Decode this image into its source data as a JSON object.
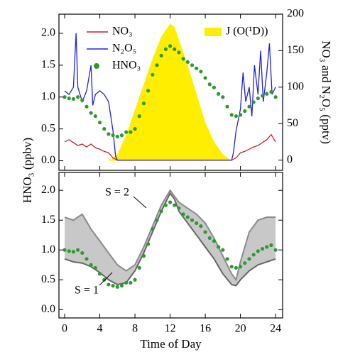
{
  "chart_data": [
    {
      "type": "line",
      "y_label": "HNO₃ (ppbv)",
      "y2_label": "NO₃ and N₂O₅ (pptv)",
      "xlim": [
        -0.65,
        24.8
      ],
      "xticks": [
        0,
        4,
        8,
        12,
        16,
        20,
        24
      ],
      "ylim": [
        -0.15,
        2.3
      ],
      "yticks": [
        {
          "value": 0,
          "label": "0.0"
        },
        0.5,
        {
          "value": 1,
          "label": "1.0"
        },
        1.5,
        {
          "value": 2,
          "label": "2.0"
        }
      ],
      "y2lim": [
        -14,
        200
      ],
      "y2ticks": [
        0,
        50,
        100,
        150,
        200
      ],
      "series": [
        {
          "name": "J (O(¹D))",
          "color": "#ffee00",
          "style": "area",
          "x": [
            5,
            6,
            7,
            8,
            9,
            10,
            11,
            12,
            12.5,
            13,
            14,
            15,
            16,
            17,
            18,
            19
          ],
          "values": [
            0,
            0.1,
            0.4,
            0.8,
            1.2,
            1.6,
            1.95,
            2.15,
            2.1,
            1.9,
            1.5,
            1.05,
            0.6,
            0.3,
            0.1,
            0
          ]
        },
        {
          "name": "NO₃",
          "color": "#cc2222",
          "style": "line",
          "axis": "y2",
          "x": [
            0,
            0.5,
            1,
            1.5,
            2,
            2.5,
            3,
            3.5,
            4,
            4.5,
            5,
            5.5,
            6,
            19,
            19.5,
            20,
            20.5,
            21,
            21.5,
            22,
            22.5,
            23,
            23.5,
            24
          ],
          "values": [
            25,
            28,
            24,
            20,
            22,
            18,
            22,
            17,
            15,
            12,
            10,
            3,
            0,
            0,
            3,
            10,
            12,
            15,
            18,
            20,
            24,
            28,
            35,
            25
          ]
        },
        {
          "name": "N₂O₅",
          "color": "#2222dd",
          "style": "line",
          "axis": "y2",
          "x": [
            0,
            0.5,
            1,
            1.3,
            1.5,
            2,
            2.5,
            3,
            3.2,
            3.5,
            4,
            4.5,
            5,
            5.5,
            5.8,
            6,
            19,
            19.2,
            19.5,
            20,
            20.3,
            20.6,
            21,
            21.3,
            21.6,
            22,
            22.3,
            22.6,
            23,
            23.3,
            23.6,
            24
          ],
          "values": [
            95,
            90,
            100,
            174,
            100,
            80,
            95,
            130,
            75,
            90,
            95,
            90,
            80,
            40,
            5,
            0,
            0,
            10,
            40,
            70,
            120,
            80,
            100,
            60,
            130,
            90,
            150,
            80,
            120,
            160,
            90,
            100
          ]
        },
        {
          "name": "HNO₃",
          "color": "#2e9a2e",
          "style": "markers",
          "x": [
            0,
            0.5,
            1,
            1.5,
            2,
            2.5,
            3,
            3.5,
            4,
            4.5,
            5,
            5.5,
            6,
            6.5,
            7,
            7.5,
            8,
            8.5,
            9,
            9.5,
            10,
            10.5,
            11,
            11.5,
            12,
            12.5,
            13,
            13.5,
            14,
            14.5,
            15,
            15.5,
            16,
            16.5,
            17,
            17.5,
            18,
            18.5,
            19,
            19.5,
            20,
            20.5,
            21,
            21.5,
            22,
            22.5,
            23,
            23.5,
            24
          ],
          "values": [
            1.0,
            0.98,
            0.97,
            1.0,
            0.95,
            0.85,
            0.75,
            0.7,
            0.6,
            0.5,
            0.42,
            0.4,
            0.38,
            0.4,
            0.45,
            0.45,
            0.5,
            0.7,
            0.9,
            1.1,
            1.35,
            1.5,
            1.65,
            1.75,
            1.8,
            1.75,
            1.7,
            1.6,
            1.55,
            1.5,
            1.45,
            1.4,
            1.3,
            1.2,
            1.15,
            1.05,
            1.0,
            0.85,
            0.72,
            0.7,
            0.72,
            0.78,
            0.85,
            0.92,
            0.98,
            1.02,
            1.05,
            1.08,
            1.0
          ]
        }
      ]
    },
    {
      "type": "line",
      "x_label": "Time of Day",
      "xlim": [
        -0.65,
        24.8
      ],
      "xticks": [
        0,
        4,
        8,
        12,
        16,
        20,
        24
      ],
      "ylim": [
        -0.14,
        2.3
      ],
      "yticks": [
        {
          "value": 0,
          "label": "0.0"
        },
        0.5,
        {
          "value": 1,
          "label": "1.0"
        },
        1.5,
        {
          "value": 2,
          "label": "2.0"
        }
      ],
      "band_fill": "#c8c8c8",
      "series": [
        {
          "name": "S = 2",
          "color": "#8a8a8a",
          "style": "line",
          "x": [
            0,
            1,
            2,
            3,
            4,
            5,
            6,
            7,
            8,
            9,
            10,
            11,
            12,
            12.5,
            13,
            14,
            15,
            16,
            17,
            18,
            19,
            19.5,
            20,
            21,
            22,
            23,
            24
          ],
          "values": [
            1.55,
            1.5,
            1.6,
            1.35,
            1.15,
            0.95,
            0.75,
            0.65,
            0.75,
            1.05,
            1.4,
            1.75,
            2.0,
            1.9,
            1.8,
            1.7,
            1.6,
            1.45,
            1.2,
            0.9,
            0.6,
            0.5,
            0.8,
            1.3,
            1.5,
            1.55,
            1.55
          ]
        },
        {
          "name": "S = 1",
          "color": "#666666",
          "style": "line",
          "x": [
            0,
            1,
            2,
            3,
            4,
            5,
            6,
            7,
            8,
            9,
            10,
            11,
            12,
            12.5,
            13,
            14,
            15,
            16,
            17,
            18,
            19,
            19.5,
            20,
            21,
            22,
            23,
            24
          ],
          "values": [
            0.85,
            0.8,
            0.78,
            0.72,
            0.62,
            0.5,
            0.42,
            0.45,
            0.65,
            0.95,
            1.3,
            1.65,
            1.95,
            1.85,
            1.65,
            1.45,
            1.25,
            1.05,
            0.85,
            0.6,
            0.42,
            0.4,
            0.5,
            0.65,
            0.75,
            0.8,
            0.85
          ]
        },
        {
          "color": "#2e9a2e",
          "style": "markers",
          "x": [
            0,
            0.5,
            1,
            1.5,
            2,
            2.5,
            3,
            3.5,
            4,
            4.5,
            5,
            5.5,
            6,
            6.5,
            7,
            7.5,
            8,
            8.5,
            9,
            9.5,
            10,
            10.5,
            11,
            11.5,
            12,
            12.5,
            13,
            13.5,
            14,
            14.5,
            15,
            15.5,
            16,
            16.5,
            17,
            17.5,
            18,
            18.5,
            19,
            19.5,
            20,
            20.5,
            21,
            21.5,
            22,
            22.5,
            23,
            23.5,
            24
          ],
          "values": [
            1.0,
            0.98,
            0.97,
            1.0,
            0.95,
            0.85,
            0.75,
            0.7,
            0.6,
            0.5,
            0.42,
            0.4,
            0.38,
            0.4,
            0.45,
            0.45,
            0.5,
            0.7,
            0.9,
            1.1,
            1.35,
            1.5,
            1.65,
            1.75,
            1.8,
            1.75,
            1.7,
            1.6,
            1.55,
            1.5,
            1.45,
            1.4,
            1.3,
            1.2,
            1.15,
            1.05,
            1.0,
            0.85,
            0.72,
            0.7,
            0.72,
            0.78,
            0.85,
            0.92,
            0.98,
            1.02,
            1.05,
            1.08,
            1.0
          ]
        }
      ]
    }
  ]
}
